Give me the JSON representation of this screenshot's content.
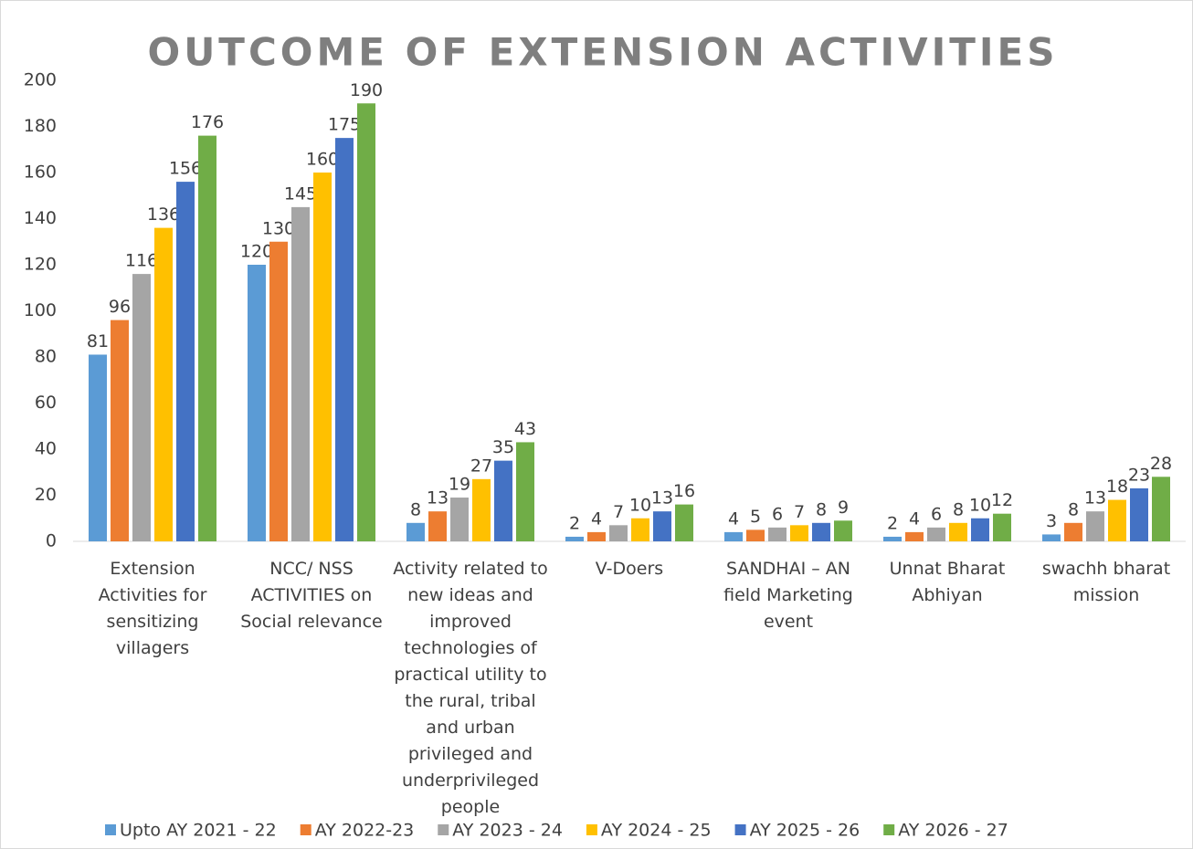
{
  "chart_data": {
    "type": "bar",
    "title": "OUTCOME OF EXTENSION ACTIVITIES",
    "categories": [
      "Extension Activities for sensitizing villagers",
      "NCC/ NSS ACTIVITIES on Social relevance",
      "Activity related to new ideas and improved technologies of practical utility to the rural, tribal and urban privileged and underprivileged people",
      "V-Doers",
      "SANDHAI – AN field Marketing event",
      "Unnat Bharat Abhiyan",
      "swachh bharat mission"
    ],
    "series": [
      {
        "name": "Upto AY 2021 - 22",
        "color": "#5b9bd5",
        "values": [
          81,
          120,
          8,
          2,
          4,
          2,
          3
        ]
      },
      {
        "name": "AY 2022-23",
        "color": "#ed7d31",
        "values": [
          96,
          130,
          13,
          4,
          5,
          4,
          8
        ]
      },
      {
        "name": "AY 2023 - 24",
        "color": "#a5a5a5",
        "values": [
          116,
          145,
          19,
          7,
          6,
          6,
          13
        ]
      },
      {
        "name": "AY 2024 - 25",
        "color": "#ffc000",
        "values": [
          136,
          160,
          27,
          10,
          7,
          8,
          18
        ]
      },
      {
        "name": "AY 2025 - 26",
        "color": "#4472c4",
        "values": [
          156,
          175,
          35,
          13,
          8,
          10,
          23
        ]
      },
      {
        "name": "AY 2026 - 27",
        "color": "#70ad47",
        "values": [
          176,
          190,
          43,
          16,
          9,
          12,
          28
        ]
      }
    ],
    "ylim": [
      0,
      200
    ],
    "yticks": [
      0,
      20,
      40,
      60,
      80,
      100,
      120,
      140,
      160,
      180,
      200
    ],
    "grid": false,
    "legend": "bottom"
  }
}
